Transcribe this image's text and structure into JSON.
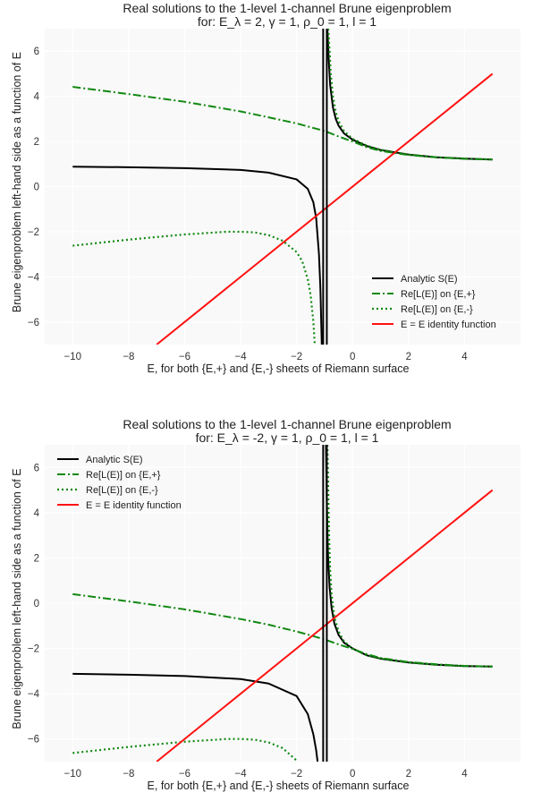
{
  "chart_data": [
    {
      "type": "line",
      "title": "Real solutions to the 1-level 1-channel Brune eigenproblem",
      "subtitle": "for: E_λ = 2, γ = 1, ρ_0 = 1, l = 1",
      "xlabel": "E, for both {E,+} and {E,-} sheets of Riemann surface",
      "ylabel": "Brune eigenproblem left-hand side as a function of E",
      "xlim": [
        -11,
        6
      ],
      "ylim": [
        -7,
        7
      ],
      "xticks": [
        -10,
        -8,
        -6,
        -4,
        -2,
        0,
        2,
        4
      ],
      "yticks": [
        -6,
        -4,
        -2,
        0,
        2,
        4,
        6
      ],
      "x_tick_labels": [
        "−10",
        "−8",
        "−6",
        "−4",
        "−2",
        "0",
        "2",
        "4"
      ],
      "y_tick_labels": [
        "−6",
        "−4",
        "−2",
        "0",
        "2",
        "4",
        "6"
      ],
      "grid": true,
      "legend_position": "bottom-right",
      "vertical_lines": [
        -1.05,
        -0.92
      ],
      "series": [
        {
          "name": "Analytic S(E)",
          "color": "#000000",
          "style": "solid",
          "x": [
            -10,
            -8,
            -6,
            -4,
            -3,
            -2,
            -1.6,
            -1.4,
            -1.3,
            -1.2,
            -1.15,
            -1.1
          ],
          "y": [
            0.88,
            0.86,
            0.82,
            0.74,
            0.62,
            0.32,
            -0.1,
            -0.7,
            -1.4,
            -3,
            -4.5,
            -7
          ]
        },
        {
          "name": "Analytic S(E)",
          "color": "#000000",
          "style": "solid",
          "x": [
            -0.9,
            -0.85,
            -0.8,
            -0.7,
            -0.6,
            -0.5,
            -0.3,
            0,
            0.5,
            1,
            2,
            3,
            4,
            5
          ],
          "y": [
            7,
            5.6,
            4.5,
            3.5,
            3.0,
            2.7,
            2.35,
            2.08,
            1.8,
            1.62,
            1.42,
            1.3,
            1.24,
            1.2
          ]
        },
        {
          "name": "Re[L(E)] on {E,+}",
          "color": "#118811",
          "style": "dashdot",
          "x": [
            -10,
            -8,
            -6,
            -4,
            -3,
            -2,
            -1.5,
            -1,
            -0.5,
            0,
            0.5,
            1,
            2,
            3,
            4,
            5
          ],
          "y": [
            4.42,
            4.1,
            3.76,
            3.33,
            3.07,
            2.8,
            2.63,
            2.47,
            2.22,
            2.0,
            1.75,
            1.58,
            1.4,
            1.3,
            1.23,
            1.2
          ]
        },
        {
          "name": "Re[L(E)] on {E,-}",
          "color": "#118811",
          "style": "dotted",
          "x": [
            -10,
            -8,
            -6,
            -4.5,
            -4,
            -3.5,
            -3,
            -2.5,
            -2,
            -1.8,
            -1.6,
            -1.5,
            -1.4,
            -1.35
          ],
          "y": [
            -2.62,
            -2.35,
            -2.12,
            -2.0,
            -2.0,
            -2.03,
            -2.15,
            -2.4,
            -2.9,
            -3.3,
            -4.1,
            -4.8,
            -6,
            -7
          ]
        },
        {
          "name": "Re[L(E)] on {E,-}",
          "color": "#118811",
          "style": "dotted",
          "x": [
            -0.87,
            -0.82,
            -0.78,
            -0.7,
            -0.6,
            -0.5,
            -0.3,
            0,
            0.5,
            1,
            2,
            3,
            4,
            5
          ],
          "y": [
            7,
            6,
            5,
            4.0,
            3.3,
            2.9,
            2.45,
            2.12,
            1.82,
            1.63,
            1.42,
            1.3,
            1.24,
            1.2
          ]
        },
        {
          "name": "E = E identity function",
          "color": "#ff1111",
          "style": "solid",
          "x": [
            -7,
            5
          ],
          "y": [
            -7,
            5
          ]
        }
      ],
      "legend": [
        {
          "label": "Analytic S(E)",
          "color": "#000000",
          "style": "solid"
        },
        {
          "label": "Re[L(E)] on {E,+}",
          "color": "#118811",
          "style": "dashdot"
        },
        {
          "label": "Re[L(E)] on {E,-}",
          "color": "#118811",
          "style": "dotted"
        },
        {
          "label": "E = E identity function",
          "color": "#ff1111",
          "style": "solid"
        }
      ]
    },
    {
      "type": "line",
      "title": "Real solutions to the 1-level 1-channel Brune eigenproblem",
      "subtitle": "for: E_λ = -2, γ = 1, ρ_0 = 1, l = 1",
      "xlabel": "E, for both {E,+} and {E,-} sheets of Riemann surface",
      "ylabel": "Brune eigenproblem left-hand side as a function of E",
      "xlim": [
        -11,
        6
      ],
      "ylim": [
        -7,
        7
      ],
      "xticks": [
        -10,
        -8,
        -6,
        -4,
        -2,
        0,
        2,
        4
      ],
      "yticks": [
        -6,
        -4,
        -2,
        0,
        2,
        4,
        6
      ],
      "x_tick_labels": [
        "−10",
        "−8",
        "−6",
        "−4",
        "−2",
        "0",
        "2",
        "4"
      ],
      "y_tick_labels": [
        "−6",
        "−4",
        "−2",
        "0",
        "2",
        "4",
        "6"
      ],
      "grid": true,
      "legend_position": "top-left",
      "vertical_lines": [
        -1.05,
        -0.92
      ],
      "series": [
        {
          "name": "Analytic S(E)",
          "color": "#000000",
          "style": "solid",
          "x": [
            -10,
            -8,
            -6,
            -4,
            -3,
            -2,
            -1.6,
            -1.4,
            -1.3,
            -1.25
          ],
          "y": [
            -3.12,
            -3.16,
            -3.22,
            -3.35,
            -3.55,
            -4.1,
            -4.9,
            -5.8,
            -6.5,
            -7
          ]
        },
        {
          "name": "Analytic S(E)",
          "color": "#000000",
          "style": "solid",
          "x": [
            -0.95,
            -0.92,
            -0.88,
            -0.82,
            -0.75,
            -0.65,
            -0.5,
            -0.3,
            0,
            0.5,
            1,
            2,
            3,
            4,
            5
          ],
          "y": [
            7,
            4.5,
            2.2,
            0.7,
            -0.2,
            -0.9,
            -1.4,
            -1.75,
            -2.0,
            -2.3,
            -2.45,
            -2.62,
            -2.72,
            -2.78,
            -2.8
          ]
        },
        {
          "name": "Re[L(E)] on {E,+}",
          "color": "#118811",
          "style": "dashdot",
          "x": [
            -10,
            -8,
            -6,
            -4,
            -3,
            -2,
            -1.5,
            -1,
            -0.5,
            0,
            0.5,
            1,
            2,
            3,
            4,
            5
          ],
          "y": [
            0.4,
            0.08,
            -0.27,
            -0.7,
            -0.95,
            -1.25,
            -1.42,
            -1.6,
            -1.82,
            -2.02,
            -2.25,
            -2.42,
            -2.6,
            -2.7,
            -2.77,
            -2.8
          ]
        },
        {
          "name": "Re[L(E)] on {E,-}",
          "color": "#118811",
          "style": "dotted",
          "x": [
            -10,
            -8,
            -6,
            -4.5,
            -4,
            -3.5,
            -3,
            -2.5,
            -2,
            -1.8,
            -1.65,
            -1.55
          ],
          "y": [
            -6.62,
            -6.35,
            -6.12,
            -6.0,
            -6.0,
            -6.03,
            -6.15,
            -6.4,
            -6.95,
            -7.3,
            -7.8,
            -8.5
          ]
        },
        {
          "name": "Re[L(E)] on {E,-}",
          "color": "#118811",
          "style": "dotted",
          "x": [
            -0.9,
            -0.87,
            -0.84,
            -0.8,
            -0.75,
            -0.65,
            -0.5,
            -0.3,
            0,
            0.5,
            1,
            2,
            3,
            4,
            5
          ],
          "y": [
            7,
            5,
            3,
            1.4,
            0.4,
            -0.6,
            -1.25,
            -1.7,
            -2.0,
            -2.3,
            -2.45,
            -2.62,
            -2.72,
            -2.78,
            -2.8
          ]
        },
        {
          "name": "E = E identity function",
          "color": "#ff1111",
          "style": "solid",
          "x": [
            -7,
            5
          ],
          "y": [
            -7,
            5
          ]
        }
      ],
      "legend": [
        {
          "label": "Analytic S(E)",
          "color": "#000000",
          "style": "solid"
        },
        {
          "label": "Re[L(E)] on {E,+}",
          "color": "#118811",
          "style": "dashdot"
        },
        {
          "label": "Re[L(E)] on {E,-}",
          "color": "#118811",
          "style": "dotted"
        },
        {
          "label": "E = E identity function",
          "color": "#ff1111",
          "style": "solid"
        }
      ]
    }
  ]
}
